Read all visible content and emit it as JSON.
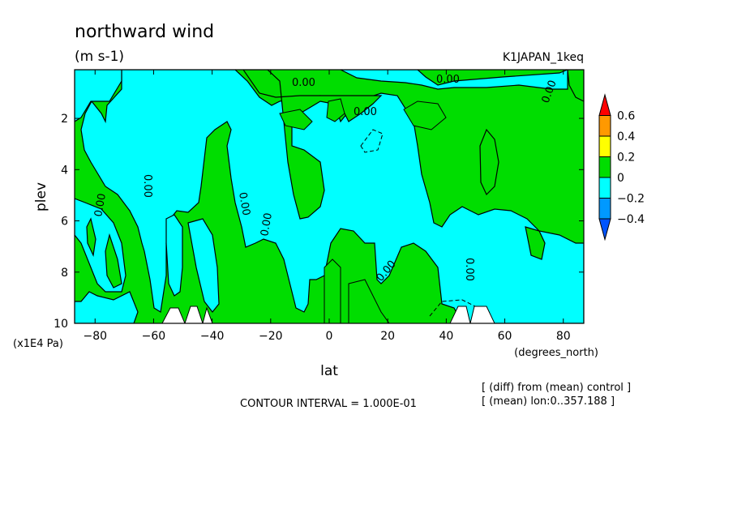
{
  "chart_data": {
    "type": "contour",
    "title": "northward wind",
    "units": "(m s-1)",
    "run_label": "K1JAPAN_1keq",
    "xlabel": "lat",
    "xunits": "(degrees_north)",
    "ylabel": "plev",
    "yunits": "(x1E4 Pa)",
    "xlim": [
      -87,
      87
    ],
    "ylim": [
      10,
      0.1
    ],
    "y_reversed": true,
    "x_ticks": [
      -80,
      -60,
      -40,
      -20,
      0,
      20,
      40,
      60,
      80
    ],
    "y_ticks": [
      2,
      4,
      6,
      8,
      10
    ],
    "contour_interval_text": "CONTOUR INTERVAL = 1.000E-01",
    "contour_label": "0.00",
    "notes": [
      "[ (diff) from (mean) control ]",
      "[ (mean) lon:0..357.188 ]"
    ],
    "colorbar": {
      "levels": [
        "0.6",
        "0.4",
        "0.2",
        "0",
        "−0.2",
        "−0.4"
      ],
      "colors": [
        "#ff0000",
        "#ff9900",
        "#ffff00",
        "#00dd00",
        "#00ffff",
        "#0099ff",
        "#0055ff"
      ]
    },
    "fill_colors": {
      "positive": "#00dd00",
      "negative": "#00ffff",
      "missing": "#ffffff"
    }
  }
}
